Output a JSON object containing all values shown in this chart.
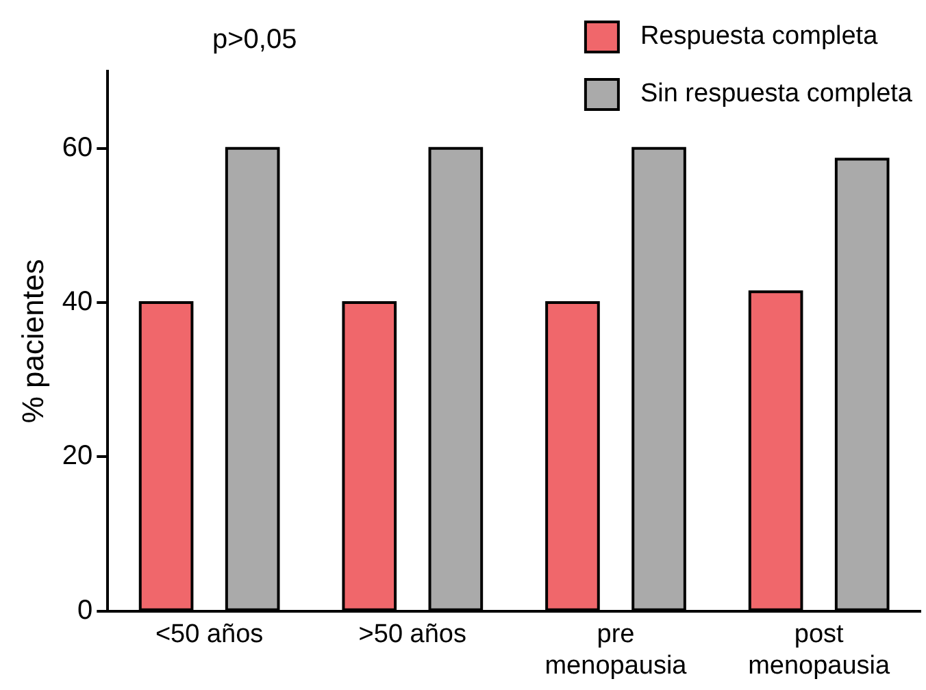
{
  "chart_data": {
    "type": "bar",
    "ylabel": "% pacientes",
    "categories": [
      "<50 años",
      ">50 años",
      "pre\nmenopausia",
      "post\nmenopausia"
    ],
    "series": [
      {
        "name": "Respuesta completa",
        "color": "#f0676b",
        "values": [
          40,
          40,
          40,
          41.4
        ]
      },
      {
        "name": "Sin respuesta completa",
        "color": "#aaaaaa",
        "values": [
          60,
          60,
          60,
          58.6
        ]
      }
    ],
    "ylim": [
      0,
      70
    ],
    "yticks": [
      0,
      20,
      40,
      60
    ],
    "grid": false,
    "legend": "top right",
    "annotations": [
      "p>0,05"
    ]
  }
}
